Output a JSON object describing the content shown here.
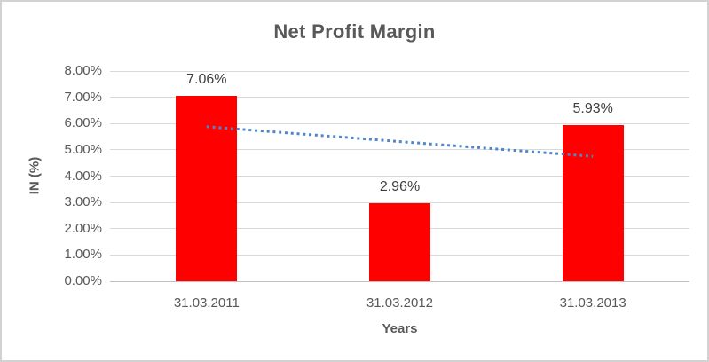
{
  "chart_data": {
    "type": "bar",
    "title": "Net Profit Margin",
    "categories": [
      "31.03.2011",
      "31.03.2012",
      "31.03.2013"
    ],
    "values": [
      7.06,
      2.96,
      5.93
    ],
    "data_labels": [
      "7.06%",
      "2.96%",
      "5.93%"
    ],
    "xlabel": "Years",
    "ylabel": "IN (%)",
    "ylim": [
      0,
      8
    ],
    "ytick_step": 1,
    "ytick_labels": [
      "0.00%",
      "1.00%",
      "2.00%",
      "3.00%",
      "4.00%",
      "5.00%",
      "6.00%",
      "7.00%",
      "8.00%"
    ],
    "grid": true,
    "legend": "none",
    "bar_color": "#ff0000",
    "trendline": {
      "kind": "linear",
      "style": "dotted",
      "color": "#4e87c8",
      "start_value": 5.88,
      "end_value": 4.75
    }
  }
}
